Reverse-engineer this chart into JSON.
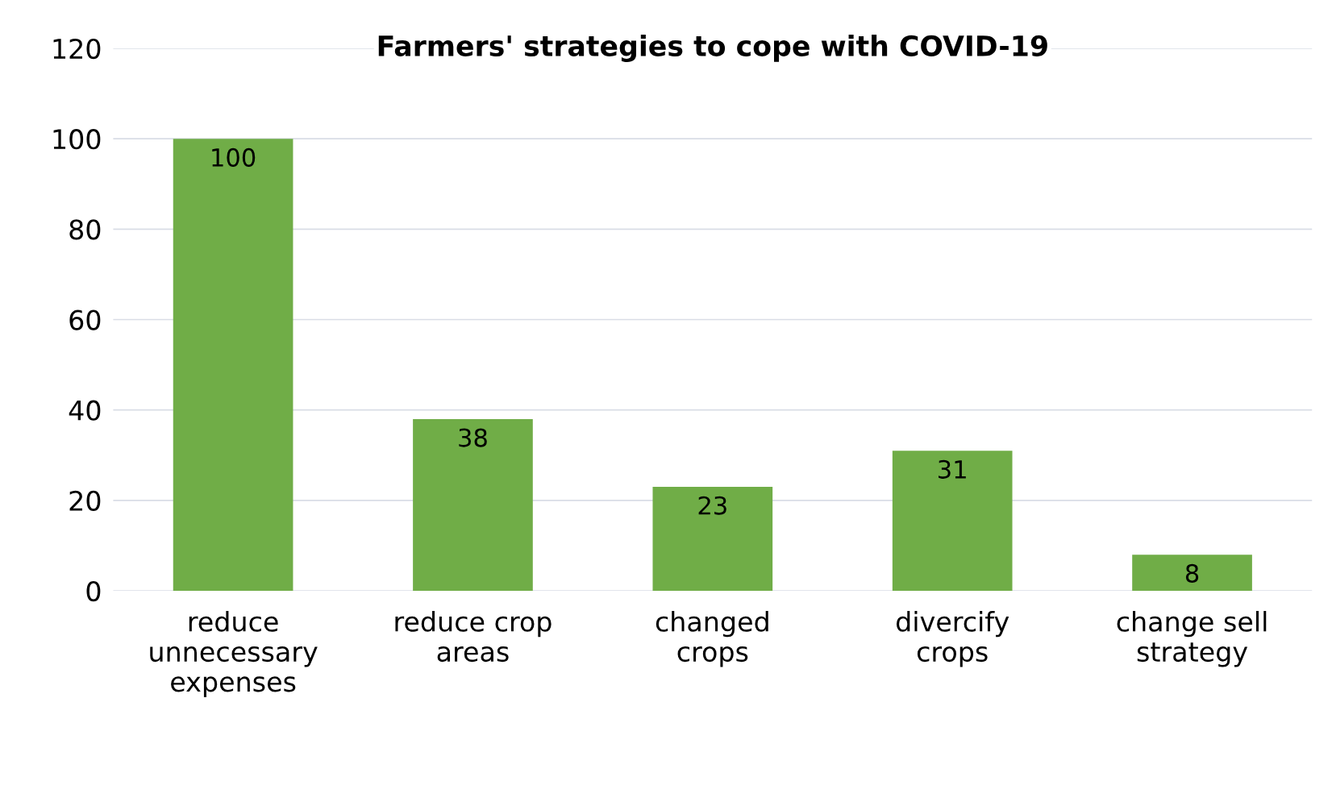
{
  "chart_data": {
    "type": "bar",
    "title": "Farmers' strategies to cope with COVID-19",
    "categories": [
      "reduce\nunnecessary\nexpenses",
      "reduce crop\nareas",
      "changed\ncrops",
      "divercify\ncrops",
      "change sell\nstrategy"
    ],
    "values": [
      100,
      38,
      23,
      31,
      8
    ],
    "color": "#70ad47",
    "ylim": [
      0,
      120
    ],
    "yticks": [
      0,
      20,
      40,
      60,
      80,
      100,
      120
    ],
    "grid": "y",
    "data_labels": true
  }
}
